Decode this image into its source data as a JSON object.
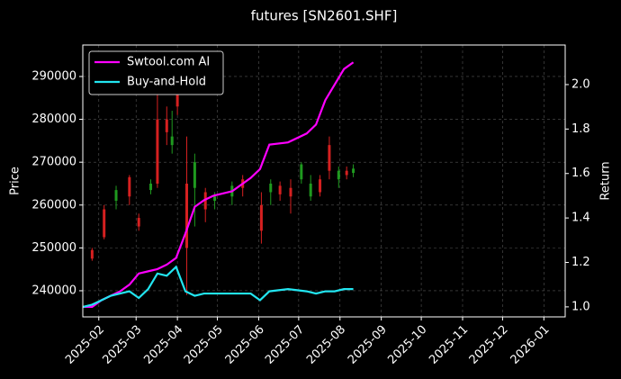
{
  "chart_data": {
    "type": "candlestick",
    "title": "futures [SN2601.SHF]",
    "y_label": "Price",
    "y2_label": "Return",
    "up_color": "#1f9a1f",
    "down_color": "#d62020",
    "x": [
      "2025-01-27",
      "2025-02-05",
      "2025-02-14",
      "2025-02-24",
      "2025-03-03",
      "2025-03-12",
      "2025-03-17",
      "2025-03-24",
      "2025-03-28",
      "2025-04-01",
      "2025-04-08",
      "2025-04-14",
      "2025-04-22",
      "2025-04-29",
      "2025-05-12",
      "2025-05-20",
      "2025-06-03",
      "2025-06-10",
      "2025-06-17",
      "2025-06-25",
      "2025-07-03",
      "2025-07-10",
      "2025-07-17",
      "2025-07-24",
      "2025-07-31",
      "2025-08-06",
      "2025-08-11"
    ],
    "open": [
      249500,
      259000,
      261000,
      266500,
      257000,
      263500,
      280000,
      280000,
      274000,
      288000,
      265000,
      264000,
      263000,
      261000,
      262000,
      266000,
      260000,
      263000,
      264500,
      264000,
      266000,
      262000,
      266000,
      274000,
      266000,
      268000,
      267500
    ],
    "high": [
      250000,
      260000,
      264500,
      267000,
      258000,
      266000,
      287000,
      283000,
      282000,
      291000,
      276000,
      272000,
      264000,
      263000,
      265500,
      267000,
      263000,
      266000,
      265500,
      266000,
      270000,
      267000,
      267000,
      276000,
      269000,
      269000,
      269500
    ],
    "low": [
      247000,
      252000,
      259000,
      260000,
      254000,
      262500,
      264000,
      274000,
      272000,
      281000,
      239000,
      255000,
      256000,
      259000,
      260000,
      262000,
      251000,
      260000,
      261000,
      258000,
      265000,
      261000,
      262000,
      266000,
      264000,
      266000,
      266500
    ],
    "close": [
      247500,
      252500,
      263500,
      262000,
      255000,
      265000,
      265000,
      277000,
      276000,
      283000,
      250000,
      270000,
      259000,
      262000,
      264500,
      264000,
      254000,
      265000,
      262500,
      262000,
      269500,
      265000,
      263000,
      268000,
      268000,
      267000,
      268500
    ],
    "series": [
      {
        "name": "Swtool.com AI",
        "color": "#ff00ff",
        "axis": "y2",
        "x": [
          "2025-01-20",
          "2025-01-27",
          "2025-02-03",
          "2025-02-10",
          "2025-02-17",
          "2025-02-24",
          "2025-03-03",
          "2025-03-10",
          "2025-03-17",
          "2025-03-24",
          "2025-03-31",
          "2025-04-07",
          "2025-04-14",
          "2025-04-21",
          "2025-04-28",
          "2025-05-12",
          "2025-05-26",
          "2025-06-02",
          "2025-06-09",
          "2025-06-23",
          "2025-07-07",
          "2025-07-14",
          "2025-07-21",
          "2025-07-28",
          "2025-08-04",
          "2025-08-11"
        ],
        "values": [
          1.0,
          1.0,
          1.03,
          1.05,
          1.07,
          1.1,
          1.15,
          1.16,
          1.17,
          1.19,
          1.22,
          1.33,
          1.45,
          1.48,
          1.5,
          1.52,
          1.58,
          1.62,
          1.73,
          1.74,
          1.78,
          1.82,
          1.93,
          2.0,
          2.07,
          2.1
        ]
      },
      {
        "name": "Buy-and-Hold",
        "color": "#22e5f0",
        "axis": "y2",
        "x": [
          "2025-01-20",
          "2025-01-27",
          "2025-02-03",
          "2025-02-10",
          "2025-02-17",
          "2025-02-24",
          "2025-03-03",
          "2025-03-10",
          "2025-03-17",
          "2025-03-24",
          "2025-03-31",
          "2025-04-07",
          "2025-04-14",
          "2025-04-21",
          "2025-04-28",
          "2025-05-12",
          "2025-05-26",
          "2025-06-02",
          "2025-06-09",
          "2025-06-23",
          "2025-07-07",
          "2025-07-14",
          "2025-07-21",
          "2025-07-28",
          "2025-08-04",
          "2025-08-11"
        ],
        "values": [
          1.0,
          1.01,
          1.03,
          1.05,
          1.06,
          1.07,
          1.04,
          1.08,
          1.15,
          1.14,
          1.18,
          1.07,
          1.05,
          1.06,
          1.06,
          1.06,
          1.06,
          1.03,
          1.07,
          1.08,
          1.07,
          1.06,
          1.07,
          1.07,
          1.08,
          1.08
        ]
      }
    ],
    "xlim": [
      "2025-01-20",
      "2026-01-17"
    ],
    "xticks": [
      "2025-02",
      "2025-03",
      "2025-04",
      "2025-05",
      "2025-06",
      "2025-07",
      "2025-08",
      "2025-09",
      "2025-10",
      "2025-11",
      "2025-12",
      "2026-01"
    ],
    "ylim": [
      233900,
      297350
    ],
    "yticks": [
      240000,
      250000,
      260000,
      270000,
      280000,
      290000
    ],
    "y2lim": [
      0.955,
      2.178
    ],
    "y2ticks": [
      {
        "value": 1,
        "label": "1.0"
      },
      1.2,
      1.4,
      1.6,
      1.8,
      {
        "value": 2,
        "label": "2.0"
      }
    ],
    "grid": true,
    "legend": "upper-left"
  }
}
